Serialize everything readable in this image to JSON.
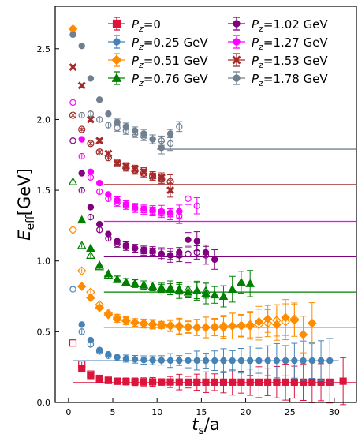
{
  "chart_data": {
    "type": "scatter",
    "title": "",
    "xlabel": "t_s/a",
    "ylabel": "E_eff[GeV]",
    "xlim": [
      -1.5,
      32.5
    ],
    "ylim": [
      0.0,
      2.8
    ],
    "x_ticks": [
      "0",
      "5",
      "10",
      "15",
      "20",
      "25",
      "30"
    ],
    "y_ticks": [
      "0.0",
      "0.5",
      "1.0",
      "1.5",
      "2.0",
      "2.5"
    ],
    "legend_position": "top-right",
    "grid": false,
    "series": [
      {
        "name": "Pz=0",
        "sub": "z",
        "label_pre": "P",
        "label_post": "=0",
        "color": "#dc143c",
        "marker": "square",
        "plateau": {
          "value": 0.14,
          "x_start": 0.5,
          "x_end": 32.5
        },
        "filled": [
          [
            1.5,
            0.24
          ],
          [
            2.5,
            0.19
          ],
          [
            3.5,
            0.165
          ],
          [
            4.5,
            0.155
          ],
          [
            5.5,
            0.15
          ],
          [
            6.5,
            0.148
          ],
          [
            7.5,
            0.146
          ],
          [
            8.5,
            0.145
          ],
          [
            9.5,
            0.145
          ],
          [
            10.5,
            0.144
          ],
          [
            11.5,
            0.144
          ],
          [
            12.5,
            0.144
          ],
          [
            13.5,
            0.143
          ],
          [
            14.5,
            0.143
          ],
          [
            15.5,
            0.143
          ],
          [
            16.5,
            0.143
          ],
          [
            17.5,
            0.143
          ],
          [
            18.5,
            0.143
          ],
          [
            19.5,
            0.143
          ],
          [
            20.5,
            0.143
          ],
          [
            21.5,
            0.143
          ],
          [
            22.5,
            0.143
          ],
          [
            23.5,
            0.143
          ],
          [
            24.5,
            0.143
          ],
          [
            25.5,
            0.143
          ],
          [
            26.5,
            0.143
          ],
          [
            27.5,
            0.143
          ],
          [
            28.5,
            0.143
          ],
          [
            29.5,
            0.143
          ],
          [
            31.0,
            0.15
          ]
        ],
        "open": [
          [
            0.5,
            0.42
          ],
          [
            1.5,
            0.27
          ],
          [
            2.5,
            0.2
          ],
          [
            3.5,
            0.17
          ],
          [
            4.5,
            0.157
          ]
        ]
      },
      {
        "name": "Pz=0.25 GeV",
        "sub": "z",
        "label_pre": "P",
        "label_post": "=0.25 GeV",
        "color": "#4682b4",
        "marker": "circle",
        "plateau": {
          "value": 0.295,
          "x_start": 0.5,
          "x_end": 30.5
        },
        "filled": [
          [
            1.5,
            0.55
          ],
          [
            2.5,
            0.44
          ],
          [
            3.5,
            0.37
          ],
          [
            4.5,
            0.34
          ],
          [
            5.5,
            0.32
          ],
          [
            6.5,
            0.31
          ],
          [
            7.5,
            0.305
          ],
          [
            8.5,
            0.3
          ],
          [
            9.5,
            0.298
          ],
          [
            10.5,
            0.297
          ],
          [
            11.5,
            0.296
          ],
          [
            12.5,
            0.296
          ],
          [
            13.5,
            0.296
          ],
          [
            14.5,
            0.296
          ],
          [
            15.5,
            0.295
          ],
          [
            16.5,
            0.295
          ],
          [
            17.5,
            0.295
          ],
          [
            18.5,
            0.295
          ],
          [
            19.5,
            0.295
          ],
          [
            20.5,
            0.295
          ],
          [
            21.5,
            0.295
          ],
          [
            22.5,
            0.295
          ],
          [
            23.5,
            0.295
          ],
          [
            24.5,
            0.295
          ],
          [
            25.5,
            0.295
          ],
          [
            26.5,
            0.295
          ],
          [
            27.5,
            0.295
          ],
          [
            28.5,
            0.295
          ],
          [
            29.5,
            0.295
          ]
        ],
        "open": [
          [
            0.5,
            0.8
          ],
          [
            1.5,
            0.5
          ],
          [
            2.5,
            0.41
          ],
          [
            3.5,
            0.36
          ],
          [
            4.5,
            0.33
          ]
        ]
      },
      {
        "name": "Pz=0.51 GeV",
        "sub": "z",
        "label_pre": "P",
        "label_post": "=0.51 GeV",
        "color": "#ff8c00",
        "marker": "diamond",
        "plateau": {
          "value": 0.53,
          "x_start": 4.0,
          "x_end": 32.5
        },
        "filled": [
          [
            0.5,
            2.64
          ],
          [
            1.5,
            0.82
          ],
          [
            2.5,
            0.74
          ],
          [
            3.5,
            0.67
          ],
          [
            4.5,
            0.62
          ],
          [
            5.5,
            0.59
          ],
          [
            6.5,
            0.575
          ],
          [
            7.5,
            0.565
          ],
          [
            8.5,
            0.56
          ],
          [
            9.5,
            0.555
          ],
          [
            10.5,
            0.55
          ],
          [
            11.5,
            0.545
          ],
          [
            12.5,
            0.54
          ],
          [
            13.5,
            0.535
          ],
          [
            14.5,
            0.53
          ],
          [
            15.5,
            0.53
          ],
          [
            16.5,
            0.53
          ],
          [
            17.5,
            0.53
          ],
          [
            18.5,
            0.54
          ],
          [
            19.5,
            0.54
          ],
          [
            20.5,
            0.54
          ],
          [
            21.5,
            0.57
          ],
          [
            22.5,
            0.59
          ],
          [
            23.5,
            0.55
          ],
          [
            24.5,
            0.6
          ],
          [
            25.5,
            0.58
          ],
          [
            26.5,
            0.48
          ],
          [
            27.5,
            0.56
          ]
        ],
        "open": [
          [
            0.5,
            1.22
          ],
          [
            1.5,
            0.93
          ],
          [
            2.5,
            0.78
          ],
          [
            3.5,
            0.69
          ],
          [
            4.5,
            0.63
          ],
          [
            5.5,
            0.6
          ],
          [
            6.5,
            0.58
          ],
          [
            7.5,
            0.565
          ],
          [
            8.5,
            0.555
          ],
          [
            9.5,
            0.55
          ],
          [
            10.5,
            0.545
          ],
          [
            11.5,
            0.54
          ],
          [
            12.5,
            0.535
          ],
          [
            13.5,
            0.53
          ],
          [
            14.5,
            0.53
          ],
          [
            15.5,
            0.53
          ],
          [
            16.5,
            0.535
          ],
          [
            17.5,
            0.54
          ],
          [
            18.5,
            0.54
          ],
          [
            19.5,
            0.545
          ],
          [
            20.5,
            0.55
          ],
          [
            21.5,
            0.55
          ],
          [
            22.5,
            0.56
          ],
          [
            23.5,
            0.58
          ],
          [
            24.5,
            0.57
          ],
          [
            25.5,
            0.59
          ]
        ]
      },
      {
        "name": "Pz=0.76 GeV",
        "sub": "z",
        "label_pre": "P",
        "label_post": "=0.76 GeV",
        "color": "#008000",
        "marker": "triangle",
        "plateau": {
          "value": 0.78,
          "x_start": 4.0,
          "x_end": 32.5
        },
        "filled": [
          [
            1.5,
            1.29
          ],
          [
            2.5,
            1.09
          ],
          [
            3.5,
            0.97
          ],
          [
            4.5,
            0.91
          ],
          [
            5.5,
            0.87
          ],
          [
            6.5,
            0.85
          ],
          [
            7.5,
            0.84
          ],
          [
            8.5,
            0.83
          ],
          [
            9.5,
            0.82
          ],
          [
            10.5,
            0.81
          ],
          [
            11.5,
            0.8
          ],
          [
            12.5,
            0.79
          ],
          [
            13.5,
            0.78
          ],
          [
            14.5,
            0.79
          ],
          [
            15.5,
            0.77
          ],
          [
            16.5,
            0.76
          ],
          [
            17.5,
            0.75
          ],
          [
            18.5,
            0.8
          ],
          [
            19.5,
            0.85
          ],
          [
            20.5,
            0.84
          ]
        ],
        "open": [
          [
            0.5,
            1.56
          ],
          [
            1.5,
            1.11
          ],
          [
            2.5,
            1.04
          ],
          [
            3.5,
            0.96
          ],
          [
            4.5,
            0.9
          ],
          [
            5.5,
            0.87
          ],
          [
            6.5,
            0.85
          ],
          [
            7.5,
            0.84
          ],
          [
            8.5,
            0.83
          ],
          [
            9.5,
            0.82
          ],
          [
            10.5,
            0.81
          ],
          [
            11.5,
            0.81
          ],
          [
            12.5,
            0.8
          ],
          [
            13.5,
            0.8
          ],
          [
            14.5,
            0.79
          ],
          [
            15.5,
            0.79
          ]
        ]
      },
      {
        "name": "Pz=1.02 GeV",
        "sub": "z",
        "label_pre": "P",
        "label_post": "=1.02 GeV",
        "color": "#800080",
        "marker": "circle",
        "plateau": {
          "value": 1.03,
          "x_start": 4.0,
          "x_end": 32.5
        },
        "filled": [
          [
            1.5,
            1.62
          ],
          [
            2.5,
            1.38
          ],
          [
            3.5,
            1.26
          ],
          [
            4.5,
            1.19
          ],
          [
            5.5,
            1.14
          ],
          [
            6.5,
            1.11
          ],
          [
            7.5,
            1.09
          ],
          [
            8.5,
            1.08
          ],
          [
            9.5,
            1.07
          ],
          [
            10.5,
            1.05
          ],
          [
            11.5,
            1.04
          ],
          [
            12.5,
            1.06
          ],
          [
            13.5,
            1.15
          ],
          [
            14.5,
            1.14
          ],
          [
            15.5,
            1.06
          ],
          [
            16.5,
            1.01
          ]
        ],
        "open": [
          [
            0.5,
            1.85
          ],
          [
            1.5,
            1.5
          ],
          [
            2.5,
            1.31
          ],
          [
            3.5,
            1.22
          ],
          [
            4.5,
            1.16
          ],
          [
            5.5,
            1.12
          ],
          [
            6.5,
            1.1
          ],
          [
            7.5,
            1.09
          ],
          [
            8.5,
            1.07
          ],
          [
            9.5,
            1.06
          ],
          [
            10.5,
            1.05
          ],
          [
            11.5,
            1.04
          ],
          [
            12.5,
            1.04
          ],
          [
            13.5,
            1.05
          ],
          [
            14.5,
            1.06
          ],
          [
            15.5,
            1.04
          ]
        ]
      },
      {
        "name": "Pz=1.27 GeV",
        "sub": "z",
        "label_pre": "P",
        "label_post": "=1.27 GeV",
        "color": "#ff00ff",
        "marker": "circle",
        "plateau": {
          "value": 1.28,
          "x_start": 4.0,
          "x_end": 32.5
        },
        "filled": [
          [
            1.5,
            1.86
          ],
          [
            2.5,
            1.63
          ],
          [
            3.5,
            1.55
          ],
          [
            4.5,
            1.47
          ],
          [
            5.5,
            1.43
          ],
          [
            6.5,
            1.4
          ],
          [
            7.5,
            1.38
          ],
          [
            8.5,
            1.37
          ],
          [
            9.5,
            1.36
          ],
          [
            10.5,
            1.35
          ],
          [
            11.5,
            1.34
          ],
          [
            12.5,
            1.35
          ]
        ],
        "open": [
          [
            0.5,
            2.12
          ],
          [
            1.5,
            1.74
          ],
          [
            2.5,
            1.59
          ],
          [
            3.5,
            1.49
          ],
          [
            4.5,
            1.44
          ],
          [
            5.5,
            1.41
          ],
          [
            6.5,
            1.39
          ],
          [
            7.5,
            1.37
          ],
          [
            8.5,
            1.36
          ],
          [
            9.5,
            1.35
          ],
          [
            10.5,
            1.34
          ],
          [
            11.5,
            1.33
          ],
          [
            12.5,
            1.32
          ],
          [
            13.5,
            1.44
          ],
          [
            14.5,
            1.39
          ]
        ]
      },
      {
        "name": "Pz=1.53 GeV",
        "sub": "z",
        "label_pre": "P",
        "label_post": "=1.53 GeV",
        "color": "#a52a2a",
        "marker": "x",
        "plateau": {
          "value": 1.54,
          "x_start": 4.0,
          "x_end": 32.5
        },
        "filled": [
          [
            0.5,
            2.37
          ],
          [
            1.5,
            2.24
          ],
          [
            2.5,
            2.0
          ],
          [
            3.5,
            1.85
          ],
          [
            4.5,
            1.76
          ],
          [
            5.5,
            1.69
          ],
          [
            6.5,
            1.67
          ],
          [
            7.5,
            1.65
          ],
          [
            8.5,
            1.63
          ],
          [
            9.5,
            1.6
          ],
          [
            10.5,
            1.59
          ],
          [
            11.5,
            1.5
          ]
        ],
        "open": [
          [
            0.5,
            2.03
          ],
          [
            1.5,
            1.93
          ],
          [
            2.5,
            1.83
          ],
          [
            3.5,
            1.77
          ],
          [
            4.5,
            1.73
          ],
          [
            5.5,
            1.69
          ],
          [
            6.5,
            1.66
          ],
          [
            7.5,
            1.64
          ],
          [
            8.5,
            1.62
          ],
          [
            9.5,
            1.6
          ],
          [
            10.5,
            1.58
          ],
          [
            11.5,
            1.56
          ]
        ]
      },
      {
        "name": "Pz=1.78 GeV",
        "sub": "z",
        "label_pre": "P",
        "label_post": "=1.78 GeV",
        "color": "#708090",
        "marker": "circle",
        "plateau": {
          "value": 1.79,
          "x_start": 10.0,
          "x_end": 32.5
        },
        "filled": [
          [
            0.5,
            2.6
          ],
          [
            1.5,
            2.52
          ],
          [
            2.5,
            2.29
          ],
          [
            3.5,
            2.14
          ],
          [
            4.5,
            2.04
          ],
          [
            5.5,
            1.98
          ],
          [
            6.5,
            1.95
          ],
          [
            7.5,
            1.92
          ],
          [
            8.5,
            1.9
          ],
          [
            9.5,
            1.86
          ],
          [
            10.5,
            1.8
          ],
          [
            11.5,
            1.9
          ]
        ],
        "open": [
          [
            1.5,
            2.03
          ],
          [
            2.5,
            2.04
          ],
          [
            3.5,
            2.0
          ],
          [
            4.5,
            1.96
          ],
          [
            5.5,
            1.94
          ],
          [
            6.5,
            1.92
          ],
          [
            7.5,
            1.9
          ],
          [
            8.5,
            1.88
          ],
          [
            9.5,
            1.86
          ],
          [
            10.5,
            1.85
          ],
          [
            11.5,
            1.83
          ],
          [
            12.5,
            1.95
          ]
        ]
      }
    ]
  }
}
